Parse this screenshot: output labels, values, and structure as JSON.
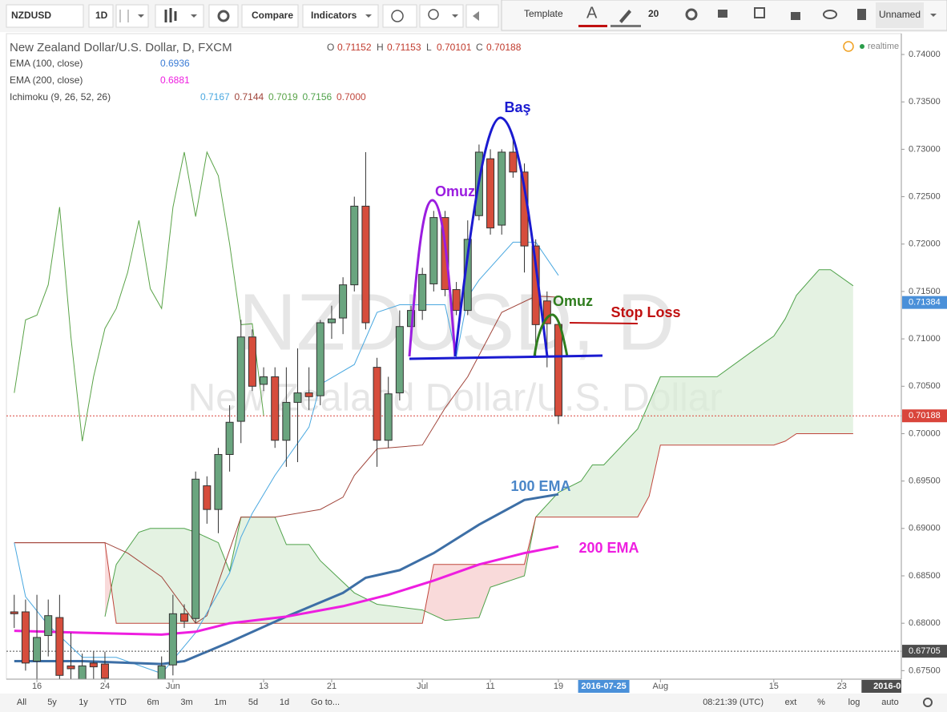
{
  "toolbar": {
    "symbol": "NZDUSD",
    "interval": "1D",
    "compare": "Compare",
    "indicators": "Indicators",
    "template": "Template",
    "font_size": "20",
    "layout": "Unnamed"
  },
  "legend": {
    "title": "New Zealand Dollar/U.S. Dollar, D, FXCM",
    "ohlc": [
      "O",
      "H",
      "L",
      "C"
    ],
    "ichimoku_name": "Ichimoku (9, 26, 52, 26)",
    "ichimoku_values": [
      "0.7167",
      "0.7144",
      "0.7019",
      "0.7156",
      "0.7000"
    ],
    "realtime": "realtime"
  },
  "watermark": {
    "symbol": "NZDUSD, D",
    "description": "New Zealand Dollar/U.S. Dollar"
  },
  "bottom_bar": {
    "ranges": [
      "All",
      "5y",
      "1y",
      "YTD",
      "6m",
      "3m",
      "1m",
      "5d",
      "1d"
    ],
    "goto": "Go to...",
    "time": "08:21:39 (UTC)",
    "options": [
      "ext",
      "%",
      "log",
      "auto"
    ]
  },
  "chart_data": {
    "type": "candlestick",
    "up_color": "#6aa57f",
    "down_color": "#d64d3c",
    "xlim": [
      -2.69,
      76.25
    ],
    "ylim": [
      0.6741,
      0.7422
    ],
    "grid": false,
    "yticks": [
      {
        "value": 0.675,
        "label": "0.67500"
      },
      {
        "value": 0.68,
        "label": "0.68000"
      },
      {
        "value": 0.685,
        "label": "0.68500"
      },
      {
        "value": 0.69,
        "label": "0.69000"
      },
      {
        "value": 0.695,
        "label": "0.69500"
      },
      {
        "value": 0.7,
        "label": "0.70000"
      },
      {
        "value": 0.705,
        "label": "0.70500"
      },
      {
        "value": 0.71,
        "label": "0.71000"
      },
      {
        "value": 0.715,
        "label": "0.71500"
      },
      {
        "value": 0.72,
        "label": "0.72000"
      },
      {
        "value": 0.725,
        "label": "0.72500"
      },
      {
        "value": 0.73,
        "label": "0.73000"
      },
      {
        "value": 0.735,
        "label": "0.73500"
      },
      {
        "value": 0.74,
        "label": "0.74000"
      }
    ],
    "xticks": [
      {
        "value": 0,
        "label": "16"
      },
      {
        "value": 6,
        "label": "24"
      },
      {
        "value": 12,
        "label": "Jun"
      },
      {
        "value": 20,
        "label": "13"
      },
      {
        "value": 26,
        "label": "21"
      },
      {
        "value": 34,
        "label": "Jul"
      },
      {
        "value": 40,
        "label": "11"
      },
      {
        "value": 46,
        "label": "19"
      },
      {
        "value": 55,
        "label": "Aug"
      },
      {
        "value": 65,
        "label": "15"
      },
      {
        "value": 71,
        "label": "23"
      }
    ],
    "x_markers": [
      {
        "value": 50,
        "label": "2016-07-25",
        "color": "#4a90d9"
      },
      {
        "value": 75,
        "label": "2016-0",
        "color": "#4d4d4d"
      }
    ],
    "price_labels": [
      {
        "value": 0.71384,
        "label": "0.71384",
        "color": "#4a90d9",
        "line": false
      },
      {
        "value": 0.70188,
        "label": "0.70188",
        "color": "#d9453b",
        "line": true
      },
      {
        "value": 0.67705,
        "label": "0.67705",
        "color": "#4d4d4d",
        "line": true
      }
    ],
    "x": [
      -2,
      -1,
      0,
      1,
      2,
      3,
      4,
      5,
      6,
      11,
      12,
      13,
      14,
      15,
      16,
      17,
      18,
      19,
      20,
      21,
      22,
      23,
      24,
      25,
      26,
      27,
      28,
      29,
      30,
      31,
      32,
      33,
      34,
      35,
      36,
      37,
      38,
      39,
      40,
      41,
      42,
      43,
      44,
      45,
      46
    ],
    "open": [
      0.6812,
      0.6812,
      0.676,
      0.6787,
      0.6806,
      0.6755,
      0.674,
      0.6758,
      0.6757,
      0.6735,
      0.6756,
      0.681,
      0.6805,
      0.6945,
      0.692,
      0.6978,
      0.7013,
      0.7102,
      0.7052,
      0.706,
      0.6993,
      0.7033,
      0.7043,
      0.704,
      0.7117,
      0.7122,
      0.7157,
      0.724,
      0.707,
      0.6993,
      0.7043,
      0.7113,
      0.713,
      0.7158,
      0.7228,
      0.7152,
      0.713,
      0.723,
      0.729,
      0.722,
      0.7297,
      0.7276,
      0.7198,
      0.714,
      0.71152
    ],
    "high": [
      0.683,
      0.6825,
      0.683,
      0.6825,
      0.683,
      0.679,
      0.6768,
      0.677,
      0.677,
      0.6765,
      0.683,
      0.682,
      0.696,
      0.6955,
      0.6985,
      0.703,
      0.712,
      0.711,
      0.707,
      0.707,
      0.707,
      0.709,
      0.707,
      0.712,
      0.7135,
      0.7165,
      0.725,
      0.7297,
      0.708,
      0.706,
      0.713,
      0.7135,
      0.7175,
      0.7235,
      0.7235,
      0.716,
      0.7225,
      0.7305,
      0.73,
      0.73,
      0.7315,
      0.7285,
      0.7205,
      0.715,
      0.71153
    ],
    "low": [
      0.6795,
      0.675,
      0.674,
      0.6765,
      0.674,
      0.6735,
      0.6735,
      0.6738,
      0.673,
      0.6725,
      0.6745,
      0.6795,
      0.68,
      0.6905,
      0.6895,
      0.696,
      0.699,
      0.7045,
      0.7045,
      0.6985,
      0.6965,
      0.697,
      0.7025,
      0.703,
      0.71,
      0.7105,
      0.715,
      0.711,
      0.6965,
      0.6985,
      0.7035,
      0.71,
      0.712,
      0.715,
      0.7145,
      0.7125,
      0.7125,
      0.7225,
      0.721,
      0.721,
      0.727,
      0.717,
      0.708,
      0.707,
      0.70101
    ],
    "close": [
      0.681,
      0.6758,
      0.6785,
      0.6808,
      0.6745,
      0.6752,
      0.6755,
      0.6754,
      0.6742,
      0.6755,
      0.681,
      0.6802,
      0.6952,
      0.692,
      0.6978,
      0.7012,
      0.7102,
      0.705,
      0.706,
      0.6993,
      0.7033,
      0.7043,
      0.7039,
      0.7117,
      0.7121,
      0.7157,
      0.724,
      0.7117,
      0.6993,
      0.7042,
      0.7113,
      0.713,
      0.7168,
      0.7228,
      0.7152,
      0.713,
      0.7205,
      0.7297,
      0.7217,
      0.7297,
      0.7276,
      0.7198,
      0.7115,
      0.7116,
      0.70188
    ],
    "ema100": {
      "name": "EMA (100, close)",
      "color": "#3d6fa6",
      "x": [
        -2,
        4,
        11,
        13,
        17,
        22,
        27,
        29,
        32,
        35,
        39,
        43,
        46
      ],
      "values": [
        0.676,
        0.676,
        0.6757,
        0.676,
        0.678,
        0.6807,
        0.6832,
        0.6848,
        0.6856,
        0.6874,
        0.6904,
        0.693,
        0.6936
      ]
    },
    "ema200": {
      "name": "EMA (200, close)",
      "color": "#ee1ee0",
      "x": [
        -2,
        4,
        11,
        14,
        17,
        22,
        27,
        31,
        35,
        39,
        43,
        46
      ],
      "values": [
        0.6792,
        0.679,
        0.6788,
        0.6791,
        0.68,
        0.6807,
        0.6818,
        0.683,
        0.6845,
        0.6862,
        0.6874,
        0.6881
      ]
    },
    "ichimoku": {
      "conversion": {
        "color": "#4aa8e0",
        "x": [
          -2,
          -1,
          1,
          4,
          7,
          11,
          14,
          17,
          18,
          19,
          21,
          24,
          25,
          28,
          30,
          32,
          36,
          37,
          38,
          39,
          42,
          44,
          46
        ],
        "values": [
          0.6885,
          0.6828,
          0.6798,
          0.6764,
          0.6764,
          0.6747,
          0.679,
          0.6853,
          0.6891,
          0.6916,
          0.6956,
          0.7007,
          0.7052,
          0.7073,
          0.7128,
          0.7136,
          0.7136,
          0.7081,
          0.7144,
          0.7162,
          0.7202,
          0.7202,
          0.7167
        ]
      },
      "base": {
        "color": "#a0443a",
        "x": [
          -2,
          6,
          8,
          11,
          14,
          15,
          18,
          21,
          25,
          27,
          28,
          30,
          34,
          36,
          38,
          41,
          44,
          46
        ],
        "values": [
          0.6885,
          0.6885,
          0.6874,
          0.6849,
          0.68,
          0.6808,
          0.6912,
          0.6912,
          0.692,
          0.6933,
          0.6956,
          0.6984,
          0.6988,
          0.7027,
          0.706,
          0.7128,
          0.7145,
          0.7144
        ]
      },
      "lagging": {
        "color": "#5aa348",
        "x": [
          -2,
          -1,
          0,
          1,
          2,
          3,
          4,
          5,
          6,
          7,
          8,
          9,
          10,
          11,
          12,
          13,
          14,
          15,
          16,
          17,
          18,
          19,
          20
        ],
        "values": [
          0.7043,
          0.712,
          0.7125,
          0.7157,
          0.7239,
          0.7102,
          0.6992,
          0.706,
          0.7111,
          0.7132,
          0.717,
          0.7225,
          0.7153,
          0.7132,
          0.7239,
          0.7297,
          0.7229,
          0.7297,
          0.7272,
          0.72,
          0.7115,
          0.7116,
          0.7019
        ]
      },
      "span_a": {
        "color": "#4fa24a",
        "fill": "#d8ecd5",
        "x": [
          6,
          7,
          9,
          10,
          13,
          14,
          16,
          17,
          18,
          21,
          22,
          24,
          25,
          28,
          30,
          34,
          36,
          39,
          40,
          43,
          44,
          46,
          48,
          49,
          50,
          53,
          55,
          60,
          63,
          65,
          66,
          67,
          69,
          70,
          72
        ],
        "values": [
          0.6807,
          0.6862,
          0.6896,
          0.69,
          0.69,
          0.6896,
          0.6885,
          0.6855,
          0.6912,
          0.6912,
          0.6883,
          0.6883,
          0.6866,
          0.6832,
          0.682,
          0.6814,
          0.6803,
          0.6806,
          0.6838,
          0.685,
          0.6912,
          0.6938,
          0.695,
          0.6967,
          0.6967,
          0.7005,
          0.706,
          0.706,
          0.7086,
          0.7103,
          0.7121,
          0.7146,
          0.7173,
          0.7173,
          0.7156
        ]
      },
      "span_b": {
        "color": "#c0463c",
        "fill": "#f8d6d6",
        "x": [
          -2,
          6,
          7,
          34,
          35,
          43,
          44,
          53,
          54,
          55,
          65,
          66,
          67,
          72
        ],
        "values": [
          0.6885,
          0.6885,
          0.68,
          0.68,
          0.6862,
          0.6862,
          0.6912,
          0.6912,
          0.6934,
          0.6988,
          0.6988,
          0.6992,
          0.7,
          0.7
        ]
      }
    },
    "annotations": [
      {
        "text": "Baş",
        "color": "#1a1ad0"
      },
      {
        "text": "Omuz",
        "color": "#9b1de0"
      },
      {
        "text": "Omuz",
        "color": "#2f7d1e"
      },
      {
        "text": "Stop Loss",
        "color": "#c01010"
      },
      {
        "text": "100 EMA",
        "color": "#4a86c8"
      },
      {
        "text": "200 EMA",
        "color": "#ee1ee0"
      }
    ]
  }
}
